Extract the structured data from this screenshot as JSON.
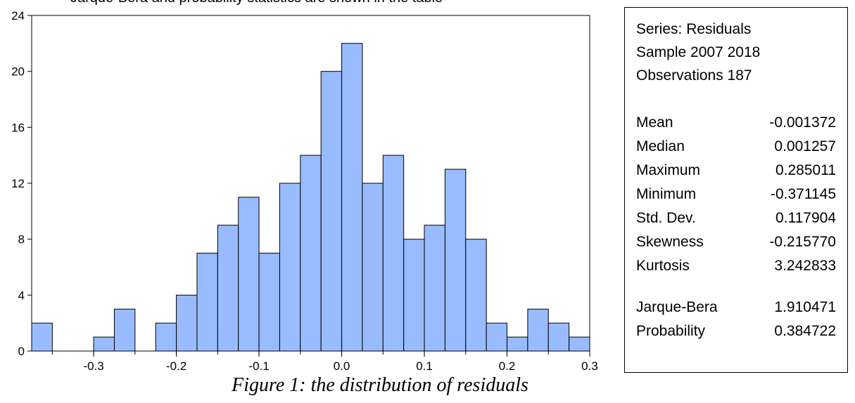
{
  "page": {
    "top_partial_text": "Jarque-Bera and probability statistics are shown in the table",
    "caption": "Figure 1: the distribution of residuals"
  },
  "colors": {
    "bar_fill": "#99bbff",
    "bar_stroke": "#000000"
  },
  "chart_data": {
    "type": "bar",
    "title": "",
    "xlabel": "",
    "ylabel": "",
    "ylim": [
      0,
      24
    ],
    "xlim": [
      -0.375,
      0.3
    ],
    "bin_width": 0.025,
    "y_ticks": [
      "0",
      "4",
      "8",
      "12",
      "16",
      "20",
      "24"
    ],
    "x_ticks": [
      "-0.3",
      "-0.2",
      "-0.1",
      "0.0",
      "0.1",
      "0.2",
      "0.3"
    ],
    "bins": [
      {
        "from": -0.375,
        "to": -0.35,
        "count": 2
      },
      {
        "from": -0.35,
        "to": -0.325,
        "count": 0
      },
      {
        "from": -0.325,
        "to": -0.3,
        "count": 0
      },
      {
        "from": -0.3,
        "to": -0.275,
        "count": 1
      },
      {
        "from": -0.275,
        "to": -0.25,
        "count": 3
      },
      {
        "from": -0.25,
        "to": -0.225,
        "count": 0
      },
      {
        "from": -0.225,
        "to": -0.2,
        "count": 2
      },
      {
        "from": -0.2,
        "to": -0.175,
        "count": 4
      },
      {
        "from": -0.175,
        "to": -0.15,
        "count": 7
      },
      {
        "from": -0.15,
        "to": -0.125,
        "count": 9
      },
      {
        "from": -0.125,
        "to": -0.1,
        "count": 11
      },
      {
        "from": -0.1,
        "to": -0.075,
        "count": 7
      },
      {
        "from": -0.075,
        "to": -0.05,
        "count": 12
      },
      {
        "from": -0.05,
        "to": -0.025,
        "count": 14
      },
      {
        "from": -0.025,
        "to": 0.0,
        "count": 20
      },
      {
        "from": 0.0,
        "to": 0.025,
        "count": 22
      },
      {
        "from": 0.025,
        "to": 0.05,
        "count": 12
      },
      {
        "from": 0.05,
        "to": 0.075,
        "count": 14
      },
      {
        "from": 0.075,
        "to": 0.1,
        "count": 8
      },
      {
        "from": 0.1,
        "to": 0.125,
        "count": 9
      },
      {
        "from": 0.125,
        "to": 0.15,
        "count": 13
      },
      {
        "from": 0.15,
        "to": 0.175,
        "count": 8
      },
      {
        "from": 0.175,
        "to": 0.2,
        "count": 2
      },
      {
        "from": 0.2,
        "to": 0.225,
        "count": 1
      },
      {
        "from": 0.225,
        "to": 0.25,
        "count": 3
      },
      {
        "from": 0.25,
        "to": 0.275,
        "count": 2
      },
      {
        "from": 0.275,
        "to": 0.3,
        "count": 1
      }
    ]
  },
  "stats": {
    "series": "Series: Residuals",
    "sample": "Sample 2007 2018",
    "observations": "Observations 187",
    "rows": [
      {
        "label": "Mean",
        "value": "-0.001372"
      },
      {
        "label": "Median",
        "value": "0.001257"
      },
      {
        "label": "Maximum",
        "value": "0.285011"
      },
      {
        "label": "Minimum",
        "value": "-0.371145"
      },
      {
        "label": "Std. Dev.",
        "value": "0.117904"
      },
      {
        "label": "Skewness",
        "value": "-0.215770"
      },
      {
        "label": "Kurtosis",
        "value": "3.242833"
      }
    ],
    "tests": [
      {
        "label": "Jarque-Bera",
        "value": "1.910471"
      },
      {
        "label": "Probability",
        "value": "0.384722"
      }
    ]
  }
}
